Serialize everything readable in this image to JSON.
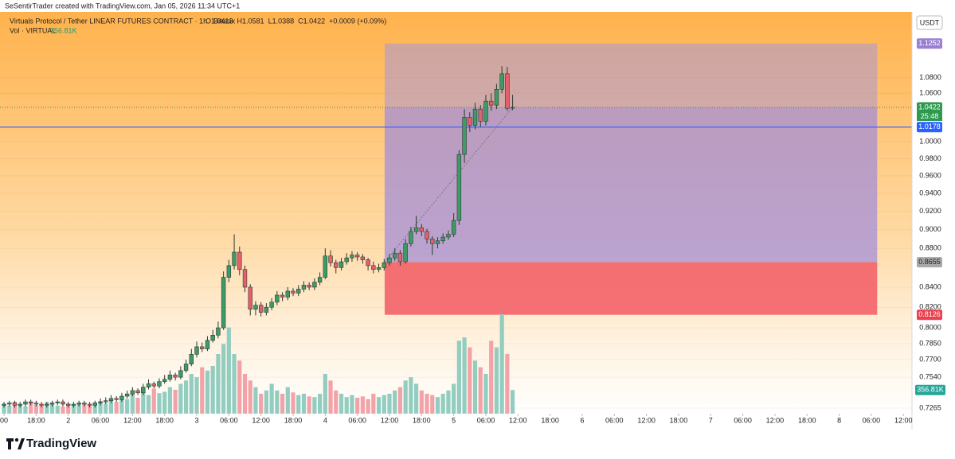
{
  "header": {
    "attribution": "SeSentirTrader created with TradingView.com, Jan 05, 2026 11:34 UTC+1",
    "symbol": "Virtuals Protocol / Tether LINEAR FUTURES CONTRACT · 1h · Bitunix",
    "ohlc": [
      "O1.0413",
      "H1.0581",
      "L1.0388",
      "C1.0422",
      "+0.0009 (+0.09%)"
    ],
    "volume_title": "Vol · VIRTUAL",
    "volume_value": "356.81K",
    "currency": "USDT"
  },
  "footer": {
    "brand": "TradingView"
  },
  "chart_data": {
    "type": "candlestick",
    "log_scale": true,
    "x": [
      0,
      1,
      2,
      3,
      4,
      5,
      6,
      7,
      8,
      9,
      10,
      11,
      12,
      13,
      14,
      15,
      16,
      17,
      18,
      19,
      20,
      21,
      22,
      23,
      24,
      25,
      26,
      27,
      28,
      29,
      30,
      31,
      32,
      33,
      34,
      35,
      36,
      37,
      38,
      39,
      40,
      41,
      42,
      43,
      44,
      45,
      46,
      47,
      48,
      49,
      50,
      51,
      52,
      53,
      54,
      55,
      56,
      57,
      58,
      59,
      60,
      61,
      62,
      63,
      64,
      65,
      66,
      67,
      68,
      69,
      70,
      71,
      72,
      73,
      74,
      75,
      76,
      77,
      78,
      79,
      80,
      81,
      82,
      83,
      84,
      85,
      86,
      87,
      88,
      89,
      90,
      91,
      92,
      93,
      94,
      95
    ],
    "open": [
      0.729,
      0.73,
      0.731,
      0.729,
      0.73,
      0.732,
      0.731,
      0.73,
      0.729,
      0.73,
      0.731,
      0.732,
      0.73,
      0.729,
      0.73,
      0.731,
      0.73,
      0.729,
      0.731,
      0.732,
      0.733,
      0.735,
      0.734,
      0.737,
      0.739,
      0.742,
      0.74,
      0.745,
      0.748,
      0.746,
      0.75,
      0.752,
      0.756,
      0.754,
      0.76,
      0.766,
      0.775,
      0.782,
      0.78,
      0.788,
      0.793,
      0.8,
      0.85,
      0.862,
      0.876,
      0.858,
      0.84,
      0.818,
      0.822,
      0.815,
      0.82,
      0.825,
      0.832,
      0.83,
      0.836,
      0.834,
      0.838,
      0.842,
      0.84,
      0.845,
      0.85,
      0.872,
      0.865,
      0.86,
      0.866,
      0.87,
      0.873,
      0.871,
      0.868,
      0.862,
      0.858,
      0.86,
      0.865,
      0.87,
      0.875,
      0.866,
      0.885,
      0.898,
      0.902,
      0.898,
      0.89,
      0.885,
      0.888,
      0.892,
      0.895,
      0.91,
      0.985,
      1.03,
      1.02,
      1.04,
      1.025,
      1.05,
      1.045,
      1.065,
      1.085,
      1.0413
    ],
    "high": [
      0.732,
      0.733,
      0.733,
      0.732,
      0.734,
      0.734,
      0.733,
      0.732,
      0.732,
      0.733,
      0.734,
      0.734,
      0.732,
      0.732,
      0.733,
      0.733,
      0.732,
      0.733,
      0.735,
      0.736,
      0.738,
      0.737,
      0.74,
      0.742,
      0.745,
      0.744,
      0.748,
      0.752,
      0.75,
      0.753,
      0.756,
      0.76,
      0.758,
      0.764,
      0.77,
      0.78,
      0.787,
      0.786,
      0.792,
      0.798,
      0.806,
      0.856,
      0.868,
      0.895,
      0.882,
      0.862,
      0.843,
      0.826,
      0.825,
      0.824,
      0.829,
      0.836,
      0.835,
      0.84,
      0.839,
      0.842,
      0.846,
      0.845,
      0.849,
      0.855,
      0.88,
      0.878,
      0.868,
      0.87,
      0.875,
      0.877,
      0.876,
      0.874,
      0.87,
      0.866,
      0.864,
      0.869,
      0.874,
      0.88,
      0.878,
      0.89,
      0.903,
      0.915,
      0.906,
      0.901,
      0.893,
      0.892,
      0.896,
      0.899,
      0.918,
      0.99,
      1.04,
      1.036,
      1.048,
      1.045,
      1.058,
      1.06,
      1.072,
      1.095,
      1.094,
      1.0581
    ],
    "low": [
      0.727,
      0.728,
      0.727,
      0.727,
      0.728,
      0.729,
      0.728,
      0.727,
      0.727,
      0.728,
      0.729,
      0.728,
      0.727,
      0.727,
      0.728,
      0.728,
      0.727,
      0.727,
      0.729,
      0.73,
      0.731,
      0.732,
      0.732,
      0.735,
      0.737,
      0.738,
      0.738,
      0.743,
      0.744,
      0.744,
      0.748,
      0.75,
      0.751,
      0.752,
      0.758,
      0.764,
      0.772,
      0.777,
      0.778,
      0.786,
      0.79,
      0.798,
      0.845,
      0.858,
      0.852,
      0.835,
      0.812,
      0.812,
      0.811,
      0.812,
      0.817,
      0.822,
      0.826,
      0.827,
      0.831,
      0.831,
      0.835,
      0.837,
      0.837,
      0.842,
      0.848,
      0.861,
      0.854,
      0.857,
      0.863,
      0.866,
      0.867,
      0.864,
      0.857,
      0.854,
      0.855,
      0.857,
      0.862,
      0.867,
      0.862,
      0.864,
      0.882,
      0.895,
      0.893,
      0.885,
      0.873,
      0.88,
      0.885,
      0.889,
      0.892,
      0.905,
      0.975,
      1.012,
      1.015,
      1.018,
      1.02,
      1.038,
      1.04,
      1.06,
      1.038,
      1.0388
    ],
    "close": [
      0.73,
      0.731,
      0.729,
      0.73,
      0.732,
      0.731,
      0.73,
      0.729,
      0.73,
      0.731,
      0.732,
      0.73,
      0.729,
      0.73,
      0.731,
      0.73,
      0.729,
      0.731,
      0.732,
      0.733,
      0.735,
      0.734,
      0.737,
      0.739,
      0.742,
      0.74,
      0.745,
      0.748,
      0.746,
      0.75,
      0.752,
      0.756,
      0.754,
      0.76,
      0.766,
      0.775,
      0.782,
      0.78,
      0.788,
      0.793,
      0.8,
      0.85,
      0.862,
      0.876,
      0.858,
      0.84,
      0.818,
      0.822,
      0.815,
      0.82,
      0.825,
      0.832,
      0.83,
      0.836,
      0.834,
      0.838,
      0.842,
      0.84,
      0.845,
      0.85,
      0.872,
      0.865,
      0.86,
      0.866,
      0.87,
      0.873,
      0.871,
      0.868,
      0.862,
      0.858,
      0.86,
      0.865,
      0.87,
      0.875,
      0.866,
      0.885,
      0.898,
      0.902,
      0.898,
      0.89,
      0.885,
      0.888,
      0.892,
      0.895,
      0.91,
      0.985,
      1.03,
      1.02,
      1.04,
      1.025,
      1.05,
      1.045,
      1.065,
      1.085,
      1.041,
      1.0422
    ],
    "volume": [
      150,
      120,
      180,
      140,
      110,
      160,
      130,
      120,
      170,
      140,
      120,
      110,
      150,
      130,
      160,
      140,
      120,
      170,
      190,
      150,
      200,
      180,
      260,
      220,
      300,
      240,
      350,
      280,
      380,
      310,
      330,
      400,
      360,
      450,
      500,
      600,
      550,
      700,
      650,
      720,
      900,
      1050,
      1300,
      900,
      800,
      600,
      500,
      400,
      300,
      350,
      450,
      350,
      300,
      400,
      320,
      280,
      300,
      260,
      250,
      300,
      600,
      500,
      350,
      300,
      250,
      280,
      240,
      260,
      220,
      300,
      250,
      280,
      300,
      350,
      400,
      500,
      550,
      450,
      350,
      300,
      280,
      250,
      300,
      350,
      450,
      1100,
      1150,
      1000,
      800,
      700,
      600,
      1100,
      1000,
      1500,
      900,
      356.81
    ],
    "volume_ylim": [
      0,
      4500
    ],
    "up_color": "#3f9b66",
    "down_color": "#e5606c",
    "volume_up_color": "#92cdbf",
    "volume_down_color": "#f3a3a8",
    "xlim": [
      -0.75,
      169.6
    ],
    "xticks": [
      {
        "value": 0,
        "label": "00"
      },
      {
        "value": 6,
        "label": "18:00"
      },
      {
        "value": 12,
        "label": "2"
      },
      {
        "value": 18,
        "label": "06:00"
      },
      {
        "value": 24,
        "label": "12:00"
      },
      {
        "value": 30,
        "label": "18:00"
      },
      {
        "value": 36,
        "label": "3"
      },
      {
        "value": 42,
        "label": "06:00"
      },
      {
        "value": 48,
        "label": "12:00"
      },
      {
        "value": 54,
        "label": "18:00"
      },
      {
        "value": 60,
        "label": "4"
      },
      {
        "value": 66,
        "label": "06:00"
      },
      {
        "value": 72,
        "label": "12:00"
      },
      {
        "value": 78,
        "label": "18:00"
      },
      {
        "value": 84,
        "label": "5"
      },
      {
        "value": 90,
        "label": "06:00"
      },
      {
        "value": 96,
        "label": "12:00"
      },
      {
        "value": 102,
        "label": "18:00"
      },
      {
        "value": 108,
        "label": "6"
      },
      {
        "value": 114,
        "label": "06:00"
      },
      {
        "value": 120,
        "label": "12:00"
      },
      {
        "value": 126,
        "label": "18:00"
      },
      {
        "value": 132,
        "label": "7"
      },
      {
        "value": 138,
        "label": "06:00"
      },
      {
        "value": 144,
        "label": "12:00"
      },
      {
        "value": 150,
        "label": "18:00"
      },
      {
        "value": 156,
        "label": "8"
      },
      {
        "value": 162,
        "label": "06:00"
      },
      {
        "value": 168,
        "label": "12:00"
      }
    ],
    "ylim": [
      0.7217,
      1.1653
    ],
    "yticks": [
      {
        "value": 1.08,
        "label": "1.0800"
      },
      {
        "value": 1.06,
        "label": "1.0600"
      },
      {
        "value": 1.0,
        "label": "1.0000"
      },
      {
        "value": 0.98,
        "label": "0.9800"
      },
      {
        "value": 0.96,
        "label": "0.9600"
      },
      {
        "value": 0.94,
        "label": "0.9400"
      },
      {
        "value": 0.92,
        "label": "0.9200"
      },
      {
        "value": 0.9,
        "label": "0.9000"
      },
      {
        "value": 0.88,
        "label": "0.8800"
      },
      {
        "value": 0.84,
        "label": "0.8400"
      },
      {
        "value": 0.82,
        "label": "0.8200"
      },
      {
        "value": 0.8,
        "label": "0.8000"
      },
      {
        "value": 0.785,
        "label": "0.7850"
      },
      {
        "value": 0.77,
        "label": "0.7700"
      },
      {
        "value": 0.754,
        "label": "0.7540"
      },
      {
        "value": 0.7265,
        "label": "0.7265"
      }
    ],
    "position": {
      "entry": 0.8655,
      "target": 1.1252,
      "stop": 0.8126,
      "x_start": 71.1,
      "x_end": 163.1
    },
    "horizontal_line": {
      "value": 1.0178,
      "color": "#2962ff"
    },
    "current_price": {
      "value": 1.0422,
      "countdown": "25:48",
      "color": "#2e9a4e"
    },
    "volume_axis_label": {
      "value": 356.81,
      "label": "356.81K",
      "color": "#26a69a"
    },
    "price_labels": [
      {
        "value": 1.1252,
        "color": "#9a7fd3"
      },
      {
        "value": 0.8655,
        "color": "#a8a8a8"
      },
      {
        "value": 0.8126,
        "color": "#e8414f"
      }
    ]
  }
}
